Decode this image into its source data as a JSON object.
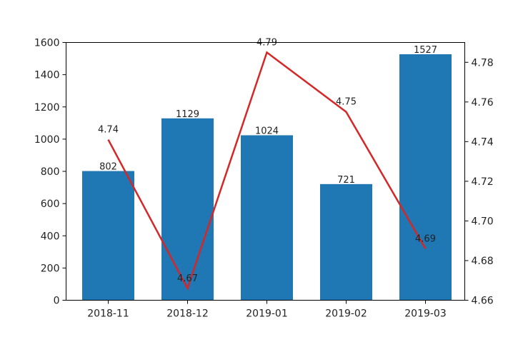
{
  "chart_data": {
    "type": "bar",
    "categories": [
      "2018-11",
      "2018-12",
      "2019-01",
      "2019-02",
      "2019-03"
    ],
    "series": [
      {
        "type": "bar",
        "axis": "left",
        "values": [
          802,
          1129,
          1024,
          721,
          1527
        ],
        "color": "#1f77b4"
      },
      {
        "type": "line",
        "axis": "right",
        "values": [
          4.741,
          4.666,
          4.785,
          4.755,
          4.686
        ],
        "labels": [
          "4.74",
          "4.67",
          "4.79",
          "4.75",
          "4.69"
        ],
        "color": "#d62728"
      }
    ],
    "title": "",
    "xlabel": "",
    "ylabel": "",
    "ylim": [
      0,
      1600
    ],
    "yticks": [
      "0",
      "200",
      "400",
      "600",
      "800",
      "1000",
      "1200",
      "1400",
      "1600"
    ],
    "y2lim": [
      4.66,
      4.79
    ],
    "y2ticks": [
      "4.66",
      "4.68",
      "4.70",
      "4.72",
      "4.74",
      "4.76",
      "4.78"
    ],
    "grid": false,
    "legend": "none"
  }
}
